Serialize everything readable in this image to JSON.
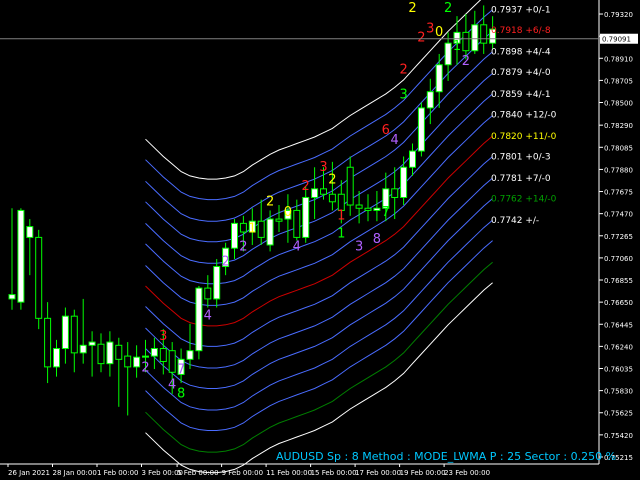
{
  "chart_data": {
    "type": "candlestick",
    "symbol": "AUDUSD",
    "info_line": "AUDUSD  Sp : 8  Method : MODE_LWMA  P : 25  Sector : 0.250 %",
    "ylim": [
      0.7515,
      0.7945
    ],
    "price_ticks": [
      "0.79320",
      "0.79115",
      "0.78910",
      "0.78705",
      "0.78500",
      "0.78290",
      "0.78085",
      "0.77880",
      "0.77675",
      "0.77470",
      "0.77265",
      "0.77060",
      "0.76855",
      "0.76650",
      "0.76445",
      "0.76240",
      "0.76035",
      "0.75830",
      "0.75625",
      "0.75420",
      "0.75215"
    ],
    "current_price": "0.79091",
    "colors": {
      "background": "#000000",
      "bull": "#ffffff",
      "bear": "#000000",
      "candle_wick": "#00ff00",
      "axis": "#ffffff",
      "bands": [
        "#ffffff",
        "#4a6cff",
        "#4a6cff",
        "#4a6cff",
        "#4a6cff",
        "#4a6cff",
        "#4a6cff",
        "#cc0000",
        "#4a6cff",
        "#4a6cff",
        "#4a6cff",
        "#4a6cff",
        "#4a6cff",
        "#008000",
        "#ffffff"
      ]
    },
    "x_labels": [
      {
        "bar": 0,
        "text": "26 Jan 2021"
      },
      {
        "bar": 5,
        "text": "28 Jan 00:00"
      },
      {
        "bar": 10,
        "text": "1 Feb 00:00"
      },
      {
        "bar": 15,
        "text": "3 Feb 00:00"
      },
      {
        "bar": 19,
        "text": "5 Feb 00:00"
      },
      {
        "bar": 24,
        "text": "9 Feb 00:00"
      },
      {
        "bar": 29,
        "text": "11 Feb 00:00"
      },
      {
        "bar": 34,
        "text": "15 Feb 00:00"
      },
      {
        "bar": 39,
        "text": "17 Feb 00:00"
      },
      {
        "bar": 44,
        "text": "19 Feb 00:00"
      },
      {
        "bar": 49,
        "text": "23 Feb 00:00"
      }
    ],
    "candles": [
      {
        "o": 0.7668,
        "h": 0.7752,
        "l": 0.7658,
        "c": 0.7672
      },
      {
        "o": 0.7665,
        "h": 0.7752,
        "l": 0.7658,
        "c": 0.775
      },
      {
        "o": 0.7725,
        "h": 0.7742,
        "l": 0.769,
        "c": 0.7735
      },
      {
        "o": 0.7725,
        "h": 0.7732,
        "l": 0.764,
        "c": 0.765
      },
      {
        "o": 0.765,
        "h": 0.7665,
        "l": 0.759,
        "c": 0.7605
      },
      {
        "o": 0.7605,
        "h": 0.763,
        "l": 0.7596,
        "c": 0.7622
      },
      {
        "o": 0.7622,
        "h": 0.766,
        "l": 0.7608,
        "c": 0.7652
      },
      {
        "o": 0.7652,
        "h": 0.7658,
        "l": 0.76,
        "c": 0.7618
      },
      {
        "o": 0.7618,
        "h": 0.7668,
        "l": 0.7608,
        "c": 0.7625
      },
      {
        "o": 0.7625,
        "h": 0.7638,
        "l": 0.7596,
        "c": 0.7628
      },
      {
        "o": 0.7626,
        "h": 0.7636,
        "l": 0.76,
        "c": 0.7608
      },
      {
        "o": 0.7608,
        "h": 0.7638,
        "l": 0.7596,
        "c": 0.7628
      },
      {
        "o": 0.7625,
        "h": 0.7632,
        "l": 0.7568,
        "c": 0.7612
      },
      {
        "o": 0.7615,
        "h": 0.7628,
        "l": 0.756,
        "c": 0.7605
      },
      {
        "o": 0.7605,
        "h": 0.7625,
        "l": 0.7595,
        "c": 0.7614
      },
      {
        "o": 0.7614,
        "h": 0.763,
        "l": 0.76,
        "c": 0.7615
      },
      {
        "o": 0.7615,
        "h": 0.7632,
        "l": 0.7603,
        "c": 0.7622
      },
      {
        "o": 0.7622,
        "h": 0.764,
        "l": 0.7598,
        "c": 0.761
      },
      {
        "o": 0.762,
        "h": 0.7628,
        "l": 0.758,
        "c": 0.76
      },
      {
        "o": 0.7598,
        "h": 0.7622,
        "l": 0.759,
        "c": 0.7612
      },
      {
        "o": 0.7612,
        "h": 0.7645,
        "l": 0.7603,
        "c": 0.762
      },
      {
        "o": 0.762,
        "h": 0.768,
        "l": 0.7612,
        "c": 0.7678
      },
      {
        "o": 0.7678,
        "h": 0.769,
        "l": 0.766,
        "c": 0.7668
      },
      {
        "o": 0.7668,
        "h": 0.7705,
        "l": 0.766,
        "c": 0.7698
      },
      {
        "o": 0.7698,
        "h": 0.772,
        "l": 0.769,
        "c": 0.7715
      },
      {
        "o": 0.7715,
        "h": 0.7742,
        "l": 0.7705,
        "c": 0.7738
      },
      {
        "o": 0.7738,
        "h": 0.7745,
        "l": 0.7712,
        "c": 0.773
      },
      {
        "o": 0.773,
        "h": 0.7752,
        "l": 0.7718,
        "c": 0.774
      },
      {
        "o": 0.774,
        "h": 0.776,
        "l": 0.7718,
        "c": 0.7725
      },
      {
        "o": 0.7718,
        "h": 0.775,
        "l": 0.7712,
        "c": 0.7742
      },
      {
        "o": 0.7742,
        "h": 0.7755,
        "l": 0.773,
        "c": 0.774
      },
      {
        "o": 0.7742,
        "h": 0.7765,
        "l": 0.772,
        "c": 0.775
      },
      {
        "o": 0.775,
        "h": 0.776,
        "l": 0.7722,
        "c": 0.7725
      },
      {
        "o": 0.7725,
        "h": 0.7772,
        "l": 0.772,
        "c": 0.7762
      },
      {
        "o": 0.7762,
        "h": 0.779,
        "l": 0.7742,
        "c": 0.777
      },
      {
        "o": 0.777,
        "h": 0.779,
        "l": 0.776,
        "c": 0.7765
      },
      {
        "o": 0.7765,
        "h": 0.7795,
        "l": 0.775,
        "c": 0.7758
      },
      {
        "o": 0.7765,
        "h": 0.7778,
        "l": 0.7738,
        "c": 0.775
      },
      {
        "o": 0.779,
        "h": 0.78,
        "l": 0.7745,
        "c": 0.7755
      },
      {
        "o": 0.7755,
        "h": 0.7768,
        "l": 0.7738,
        "c": 0.7752
      },
      {
        "o": 0.7752,
        "h": 0.7765,
        "l": 0.774,
        "c": 0.775
      },
      {
        "o": 0.775,
        "h": 0.7768,
        "l": 0.774,
        "c": 0.7752
      },
      {
        "o": 0.7752,
        "h": 0.7785,
        "l": 0.774,
        "c": 0.777
      },
      {
        "o": 0.777,
        "h": 0.779,
        "l": 0.7742,
        "c": 0.7762
      },
      {
        "o": 0.7762,
        "h": 0.78,
        "l": 0.7755,
        "c": 0.779
      },
      {
        "o": 0.779,
        "h": 0.7812,
        "l": 0.7782,
        "c": 0.7805
      },
      {
        "o": 0.7805,
        "h": 0.785,
        "l": 0.78,
        "c": 0.7845
      },
      {
        "o": 0.7845,
        "h": 0.7872,
        "l": 0.783,
        "c": 0.786
      },
      {
        "o": 0.786,
        "h": 0.7895,
        "l": 0.7845,
        "c": 0.7885
      },
      {
        "o": 0.7885,
        "h": 0.7915,
        "l": 0.787,
        "c": 0.7905
      },
      {
        "o": 0.7905,
        "h": 0.793,
        "l": 0.7885,
        "c": 0.7915
      },
      {
        "o": 0.7915,
        "h": 0.7932,
        "l": 0.789,
        "c": 0.7898
      },
      {
        "o": 0.7898,
        "h": 0.7935,
        "l": 0.7895,
        "c": 0.7922
      },
      {
        "o": 0.7922,
        "h": 0.794,
        "l": 0.7895,
        "c": 0.7905
      },
      {
        "o": 0.7905,
        "h": 0.793,
        "l": 0.79,
        "c": 0.7918
      }
    ],
    "bands": {
      "start_bar": 15,
      "center": [
        0.768,
        0.7672,
        0.7664,
        0.7657,
        0.765,
        0.7646,
        0.7644,
        0.7643,
        0.7643,
        0.7644,
        0.7646,
        0.765,
        0.7656,
        0.7661,
        0.7666,
        0.767,
        0.7673,
        0.7676,
        0.7679,
        0.7682,
        0.7686,
        0.769,
        0.7696,
        0.7702,
        0.7707,
        0.7712,
        0.7717,
        0.7722,
        0.7728,
        0.7735,
        0.7744,
        0.7753,
        0.7762,
        0.7771,
        0.778,
        0.7788,
        0.7796,
        0.7804,
        0.7812,
        0.7819
      ],
      "offsets": [
        0.0136,
        0.0117,
        0.0097,
        0.0078,
        0.0058,
        0.0039,
        0.0019,
        0.0,
        -0.0019,
        -0.0039,
        -0.0058,
        -0.0078,
        -0.0097,
        -0.0117,
        -0.0136
      ]
    },
    "band_labels": [
      {
        "text": "0.7937 +0/-1",
        "color": "#ffffff"
      },
      {
        "text": "0.7918 +6/-8",
        "color": "#ff2020"
      },
      {
        "text": "0.7898 +4/-4",
        "color": "#ffffff"
      },
      {
        "text": "0.7879 +4/-0",
        "color": "#ffffff"
      },
      {
        "text": "0.7859 +4/-1",
        "color": "#ffffff"
      },
      {
        "text": "0.7840 +12/-0",
        "color": "#ffffff"
      },
      {
        "text": "0.7820 +11/-0",
        "color": "#ffff00"
      },
      {
        "text": "0.7801 +0/-3",
        "color": "#ffffff"
      },
      {
        "text": "0.7781 +7/-0",
        "color": "#ffffff"
      },
      {
        "text": "0.7762 +14/-0",
        "color": "#00a000"
      },
      {
        "text": "0.7742 +/-",
        "color": "#ffffff"
      }
    ],
    "markers": [
      {
        "bar": 17,
        "price": 0.7633,
        "text": "3",
        "color": "#ff2020"
      },
      {
        "bar": 15,
        "price": 0.7604,
        "text": "2",
        "color": "#b060ff"
      },
      {
        "bar": 19,
        "price": 0.7602,
        "text": "7",
        "color": "#b060ff"
      },
      {
        "bar": 18,
        "price": 0.7588,
        "text": "4",
        "color": "#b060ff"
      },
      {
        "bar": 19,
        "price": 0.758,
        "text": "8",
        "color": "#00ff00"
      },
      {
        "bar": 22,
        "price": 0.7652,
        "text": "4",
        "color": "#b060ff"
      },
      {
        "bar": 24,
        "price": 0.7702,
        "text": "2",
        "color": "#b060ff"
      },
      {
        "bar": 26,
        "price": 0.7716,
        "text": "2",
        "color": "#b060ff"
      },
      {
        "bar": 27,
        "price": 0.7733,
        "text": "1",
        "color": "#ffff00"
      },
      {
        "bar": 29,
        "price": 0.7758,
        "text": "2",
        "color": "#ffff00"
      },
      {
        "bar": 31,
        "price": 0.7748,
        "text": "0",
        "color": "#ffff00"
      },
      {
        "bar": 32,
        "price": 0.7716,
        "text": "4",
        "color": "#b060ff"
      },
      {
        "bar": 33,
        "price": 0.7772,
        "text": "2",
        "color": "#ff2020"
      },
      {
        "bar": 35,
        "price": 0.779,
        "text": "3",
        "color": "#ff2020"
      },
      {
        "bar": 36,
        "price": 0.7778,
        "text": "2",
        "color": "#ffff00"
      },
      {
        "bar": 37,
        "price": 0.7745,
        "text": "1",
        "color": "#ff2020"
      },
      {
        "bar": 37,
        "price": 0.7728,
        "text": "1",
        "color": "#00ff00"
      },
      {
        "bar": 39,
        "price": 0.7716,
        "text": "3",
        "color": "#b060ff"
      },
      {
        "bar": 41,
        "price": 0.7723,
        "text": "8",
        "color": "#b060ff"
      },
      {
        "bar": 42,
        "price": 0.7748,
        "text": "7",
        "color": "#00ff00"
      },
      {
        "bar": 42,
        "price": 0.7824,
        "text": "6",
        "color": "#ff2020"
      },
      {
        "bar": 43,
        "price": 0.7815,
        "text": "4",
        "color": "#b060ff"
      },
      {
        "bar": 44,
        "price": 0.7857,
        "text": "3",
        "color": "#00ff00"
      },
      {
        "bar": 44,
        "price": 0.788,
        "text": "2",
        "color": "#ff2020"
      },
      {
        "bar": 45,
        "price": 0.7937,
        "text": "2",
        "color": "#ffff00"
      },
      {
        "bar": 46,
        "price": 0.791,
        "text": "2",
        "color": "#ff2020"
      },
      {
        "bar": 47,
        "price": 0.7918,
        "text": "3",
        "color": "#ff2020"
      },
      {
        "bar": 48,
        "price": 0.7915,
        "text": "0",
        "color": "#ffff00"
      },
      {
        "bar": 49,
        "price": 0.7937,
        "text": "2",
        "color": "#00ff00"
      },
      {
        "bar": 51,
        "price": 0.7888,
        "text": "2",
        "color": "#b060ff"
      },
      {
        "bar": 50,
        "price": 0.7902,
        "text": "1",
        "color": "#00ff00"
      }
    ]
  }
}
